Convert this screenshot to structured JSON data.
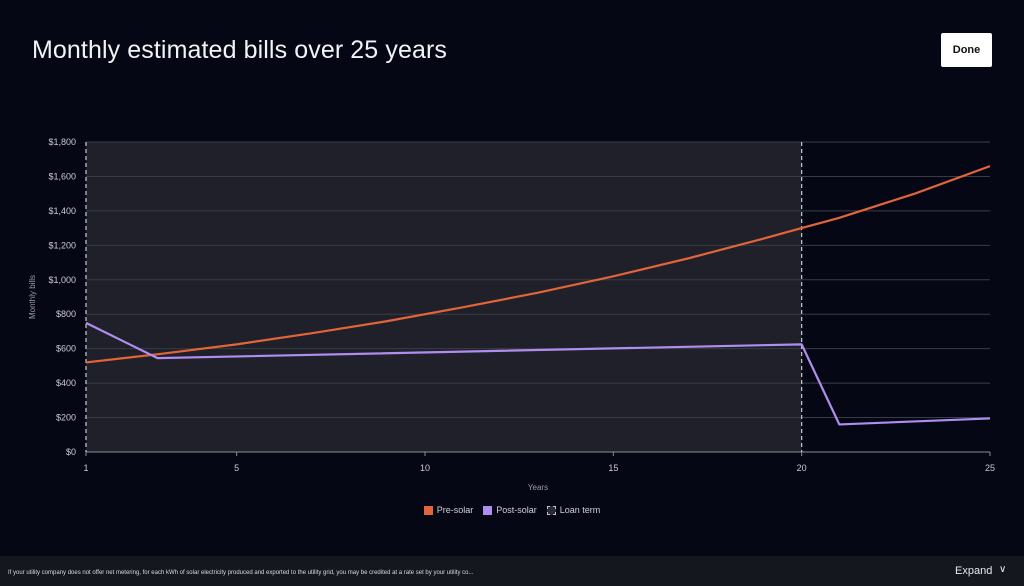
{
  "header": {
    "title": "Monthly estimated bills over 25 years",
    "done_label": "Done"
  },
  "footer": {
    "note": "If your utility company does not offer net metering, for each kWh of solar electricity produced and exported to the utility grid, you may be credited at a rate set by your utility co...",
    "expand_label": "Expand",
    "expand_icon": "chevron-down-icon"
  },
  "colors": {
    "background": "#050814",
    "loan_band": "#1f2029",
    "pre_solar": "#e2643a",
    "post_solar": "#b08ef0",
    "grid": "#3a3c45",
    "axis_text": "#c9cbd2"
  },
  "chart_data": {
    "type": "line",
    "xlabel": "Years",
    "ylabel": "Monthly bills",
    "xlim": [
      1,
      25
    ],
    "ylim": [
      0,
      1800
    ],
    "x_ticks": [
      1,
      5,
      10,
      15,
      20,
      25
    ],
    "x_tick_labels": [
      "1",
      "5",
      "10",
      "15",
      "20",
      "25"
    ],
    "y_ticks": [
      0,
      200,
      400,
      600,
      800,
      1000,
      1200,
      1400,
      1600,
      1800
    ],
    "y_tick_labels": [
      "$0",
      "$200",
      "$400",
      "$600",
      "$800",
      "$1,000",
      "$1,200",
      "$1,400",
      "$1,600",
      "$1,800"
    ],
    "grid": true,
    "legend_position": "bottom-center",
    "series": [
      {
        "name": "Pre-solar",
        "color": "#e2643a",
        "x": [
          1,
          3,
          5,
          7,
          9,
          11,
          13,
          15,
          17,
          19,
          20,
          21,
          23,
          25
        ],
        "values": [
          520,
          570,
          625,
          690,
          760,
          840,
          925,
          1020,
          1125,
          1240,
          1300,
          1360,
          1500,
          1660
        ]
      },
      {
        "name": "Post-solar",
        "color": "#b08ef0",
        "x": [
          1,
          2.9,
          20,
          21,
          25
        ],
        "values": [
          750,
          545,
          625,
          160,
          195
        ]
      }
    ],
    "loan_term": {
      "name": "Loan term",
      "start": 1,
      "end": 20
    }
  }
}
